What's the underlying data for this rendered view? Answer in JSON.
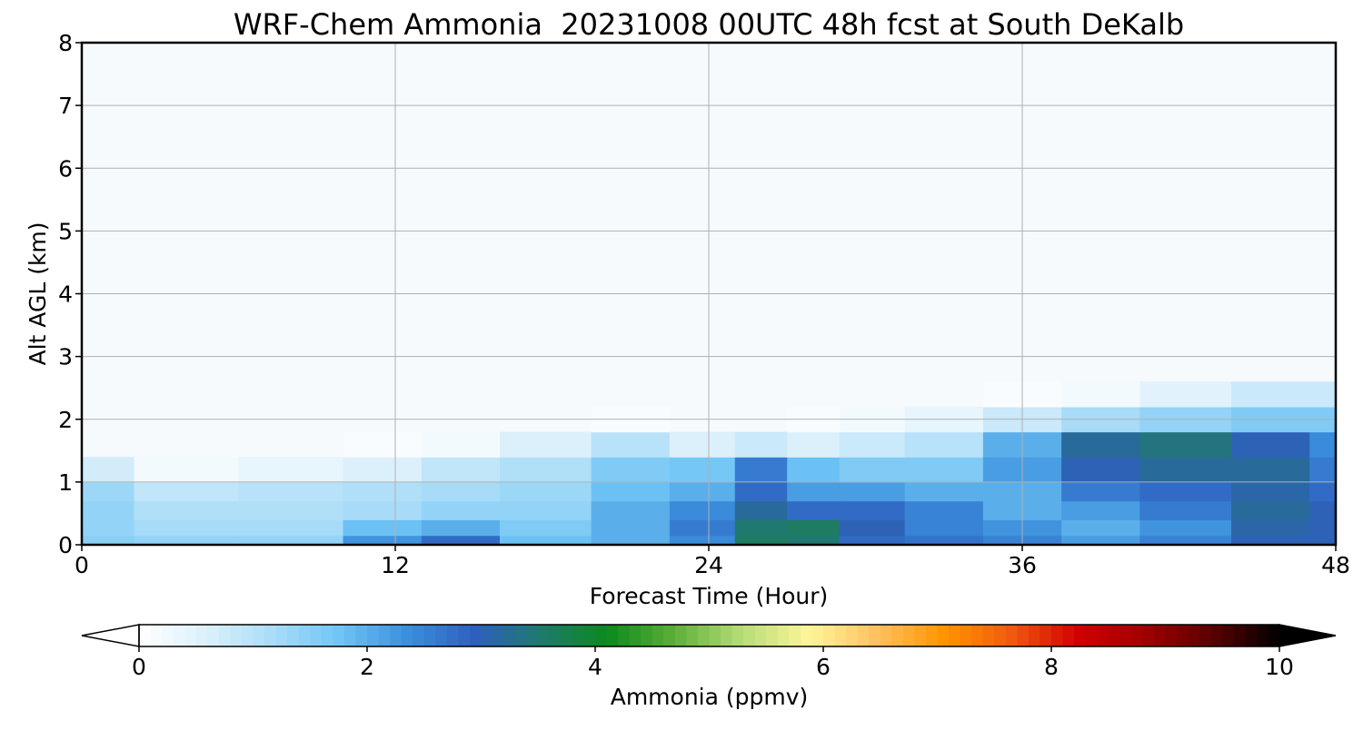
{
  "chart_data": {
    "type": "heatmap",
    "title": "WRF-Chem Ammonia  20231008 00UTC 48h fcst at South DeKalb",
    "xlabel": "Forecast Time (Hour)",
    "ylabel": "Alt AGL (km)",
    "xlim": [
      0,
      48
    ],
    "ylim": [
      0,
      8
    ],
    "x_ticks": [
      "0",
      "12",
      "24",
      "36",
      "48"
    ],
    "y_ticks": [
      "0",
      "1",
      "2",
      "3",
      "4",
      "5",
      "6",
      "7",
      "8"
    ],
    "grid": true,
    "x": [
      0,
      4,
      8,
      12,
      14,
      18,
      21,
      24,
      26,
      28,
      30,
      33,
      36,
      39,
      42,
      46,
      48
    ],
    "layer_tops_km": [
      0.15,
      0.4,
      0.7,
      1.0,
      1.4,
      1.8,
      2.2,
      2.6
    ],
    "values": [
      [
        1.5,
        1.4,
        1.4,
        2.3,
        2.8,
        1.8,
        2.0,
        2.4,
        3.6,
        3.5,
        2.8,
        2.7,
        2.5,
        2.2,
        2.5,
        3.0,
        3.0
      ],
      [
        1.4,
        1.2,
        1.2,
        1.8,
        2.0,
        1.6,
        2.0,
        2.6,
        3.5,
        3.6,
        3.0,
        2.5,
        2.3,
        2.0,
        2.3,
        3.1,
        3.0
      ],
      [
        1.4,
        1.1,
        1.1,
        1.2,
        1.4,
        1.4,
        2.0,
        2.4,
        3.2,
        2.8,
        2.8,
        2.5,
        2.0,
        2.2,
        2.6,
        3.2,
        3.0
      ],
      [
        1.3,
        0.9,
        1.0,
        1.1,
        1.2,
        1.3,
        1.8,
        2.0,
        2.8,
        2.2,
        2.2,
        2.0,
        2.0,
        2.6,
        2.8,
        3.1,
        2.8
      ],
      [
        0.7,
        0.2,
        0.4,
        0.6,
        0.9,
        1.1,
        1.6,
        1.7,
        2.6,
        1.8,
        1.6,
        1.6,
        2.2,
        3.0,
        3.2,
        3.2,
        2.6
      ],
      [
        0.0,
        0.0,
        0.0,
        0.1,
        0.2,
        0.6,
        1.0,
        0.6,
        0.8,
        0.6,
        0.8,
        1.0,
        2.0,
        3.2,
        3.4,
        3.0,
        2.4
      ],
      [
        0.0,
        0.0,
        0.0,
        0.0,
        0.0,
        0.0,
        0.1,
        0.0,
        0.0,
        0.1,
        0.2,
        0.4,
        0.8,
        1.2,
        1.4,
        1.6,
        1.6
      ],
      [
        0.0,
        0.0,
        0.0,
        0.0,
        0.0,
        0.0,
        0.0,
        0.0,
        0.0,
        0.0,
        0.0,
        0.0,
        0.1,
        0.2,
        0.5,
        0.8,
        0.8
      ]
    ],
    "colorbar": {
      "label": "Ammonia  (ppmv)",
      "ticks": [
        "0",
        "2",
        "4",
        "6",
        "8",
        "10"
      ],
      "min": 0,
      "max": 10,
      "extend": "both",
      "colors": [
        "#ffffff",
        "#dcf0fb",
        "#a9dcf8",
        "#6fc4f5",
        "#3b8fdc",
        "#2f5fbf",
        "#1f7a6c",
        "#0c8a1c",
        "#5fb03a",
        "#b8dd78",
        "#fff59a",
        "#ffc060",
        "#ff9500",
        "#f05a10",
        "#d00000",
        "#a00000",
        "#5a0000",
        "#000000"
      ]
    }
  }
}
